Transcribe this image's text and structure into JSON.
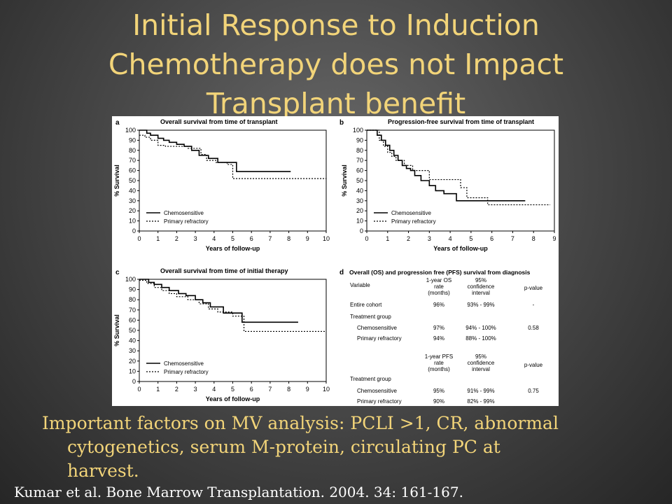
{
  "slide": {
    "title_lines": [
      "Initial Response to Induction",
      "Chemotherapy does not Impact",
      "Transplant benefit"
    ],
    "bullet_lines": [
      "Important factors on MV analysis: PCLI >1, CR, abnormal",
      "cytogenetics, serum M-protein, circulating PC at",
      "harvest."
    ],
    "citation": "Kumar et al. Bone Marrow Transplantation. 2004. 34: 161-167.",
    "colors": {
      "title": "#f2d479",
      "bullet": "#f2d479",
      "citation": "#ffffff"
    }
  },
  "chart_data": [
    {
      "panel": "a",
      "type": "line",
      "title": "Overall survival from time of transplant",
      "xlabel": "Years of follow-up",
      "ylabel": "% Survival",
      "xlim": [
        0,
        10
      ],
      "ylim": [
        0,
        100
      ],
      "xticks": [
        "0",
        "1",
        "2",
        "3",
        "4",
        "5",
        "6",
        "7",
        "8",
        "9",
        "10"
      ],
      "yticks": [
        "0",
        "10",
        "20",
        "30",
        "40",
        "50",
        "60",
        "70",
        "80",
        "90",
        "100"
      ],
      "legend_position": "bottom-left",
      "series": [
        {
          "name": "Chemosensitive",
          "style": "solid",
          "x": [
            0,
            0.4,
            0.6,
            1.0,
            1.3,
            1.6,
            2.0,
            2.4,
            2.8,
            3.2,
            3.7,
            4.2,
            5.2,
            8.1
          ],
          "y": [
            100,
            97,
            95,
            92,
            90,
            88,
            86,
            84,
            80,
            75,
            72,
            68,
            59,
            59
          ]
        },
        {
          "name": "Primary refractory",
          "style": "dotted",
          "x": [
            0,
            0.3,
            0.6,
            1.0,
            1.4,
            2.0,
            2.6,
            3.3,
            3.6,
            4.1,
            4.7,
            5.0,
            10.0
          ],
          "y": [
            95,
            93,
            90,
            85,
            84,
            84,
            82,
            76,
            70,
            68,
            66,
            52,
            52
          ]
        }
      ]
    },
    {
      "panel": "b",
      "type": "line",
      "title": "Progression-free survival from time of transplant",
      "xlabel": "Years of follow-up",
      "ylabel": "% Survival",
      "xlim": [
        0,
        9
      ],
      "ylim": [
        0,
        100
      ],
      "xticks": [
        "0",
        "1",
        "2",
        "3",
        "4",
        "5",
        "6",
        "7",
        "8",
        "9"
      ],
      "yticks": [
        "0",
        "10",
        "20",
        "30",
        "40",
        "50",
        "60",
        "70",
        "80",
        "90",
        "100"
      ],
      "legend_position": "bottom-left",
      "series": [
        {
          "name": "Chemosensitive",
          "style": "solid",
          "x": [
            0,
            0.5,
            0.7,
            0.9,
            1.1,
            1.3,
            1.5,
            1.7,
            1.9,
            2.1,
            2.3,
            2.6,
            3.0,
            3.3,
            3.7,
            4.3,
            7.6
          ],
          "y": [
            100,
            95,
            90,
            85,
            80,
            75,
            70,
            65,
            62,
            60,
            55,
            50,
            45,
            40,
            37,
            30,
            30
          ]
        },
        {
          "name": "Primary refractory",
          "style": "dotted",
          "x": [
            0,
            0.6,
            0.8,
            1.0,
            1.2,
            1.4,
            1.8,
            2.2,
            3.0,
            3.4,
            4.5,
            4.8,
            5.8,
            8.8
          ],
          "y": [
            100,
            90,
            84,
            78,
            74,
            70,
            65,
            60,
            51,
            51,
            43,
            33,
            26,
            26
          ]
        }
      ]
    },
    {
      "panel": "c",
      "type": "line",
      "title": "Overall survival from time of initial therapy",
      "xlabel": "Years of follow-up",
      "ylabel": "% Survival",
      "xlim": [
        0,
        10
      ],
      "ylim": [
        0,
        100
      ],
      "xticks": [
        "0",
        "1",
        "2",
        "3",
        "4",
        "5",
        "6",
        "7",
        "8",
        "9",
        "10"
      ],
      "yticks": [
        "0",
        "10",
        "20",
        "30",
        "40",
        "50",
        "60",
        "70",
        "80",
        "90",
        "100"
      ],
      "legend_position": "bottom-left",
      "series": [
        {
          "name": "Chemosensitive",
          "style": "solid",
          "x": [
            0,
            0.5,
            0.8,
            1.2,
            1.6,
            2.1,
            2.5,
            3.0,
            3.4,
            3.8,
            4.5,
            5.5,
            8.5
          ],
          "y": [
            100,
            97,
            95,
            92,
            89,
            86,
            84,
            80,
            77,
            73,
            67,
            58,
            58
          ]
        },
        {
          "name": "Primary refractory",
          "style": "dotted",
          "x": [
            0,
            0.4,
            0.8,
            1.2,
            1.6,
            2.0,
            2.6,
            3.2,
            3.7,
            4.2,
            5.0,
            5.6,
            10.0
          ],
          "y": [
            99,
            96,
            92,
            89,
            86,
            83,
            80,
            76,
            71,
            68,
            64,
            49,
            49
          ]
        }
      ]
    },
    {
      "panel": "d",
      "type": "table",
      "title": "Overall (OS) and progression free (PFS) survival from diagnosis",
      "os_header": [
        "Variable",
        "1-year OS rate (months)",
        "95% confidence interval",
        "p-value"
      ],
      "os_rows": [
        {
          "variable": "Entire cohort",
          "rate": "96%",
          "ci": "93% - 99%",
          "p": "-"
        },
        {
          "variable": "Treatment group",
          "rate": "",
          "ci": "",
          "p": ""
        },
        {
          "variable": "Chemosensitive",
          "rate": "97%",
          "ci": "94% - 100%",
          "p": "0.58"
        },
        {
          "variable": "Primary refractory",
          "rate": "94%",
          "ci": "88% - 100%",
          "p": ""
        }
      ],
      "pfs_header": [
        "",
        "1-year PFS rate (months)",
        "95% confidence interval",
        "p-value"
      ],
      "pfs_rows": [
        {
          "variable": "Treatment group",
          "rate": "",
          "ci": "",
          "p": ""
        },
        {
          "variable": "Chemosensitive",
          "rate": "95%",
          "ci": "91% - 99%",
          "p": "0.75"
        },
        {
          "variable": "Primary refractory",
          "rate": "90%",
          "ci": "82% - 99%",
          "p": ""
        }
      ]
    }
  ]
}
